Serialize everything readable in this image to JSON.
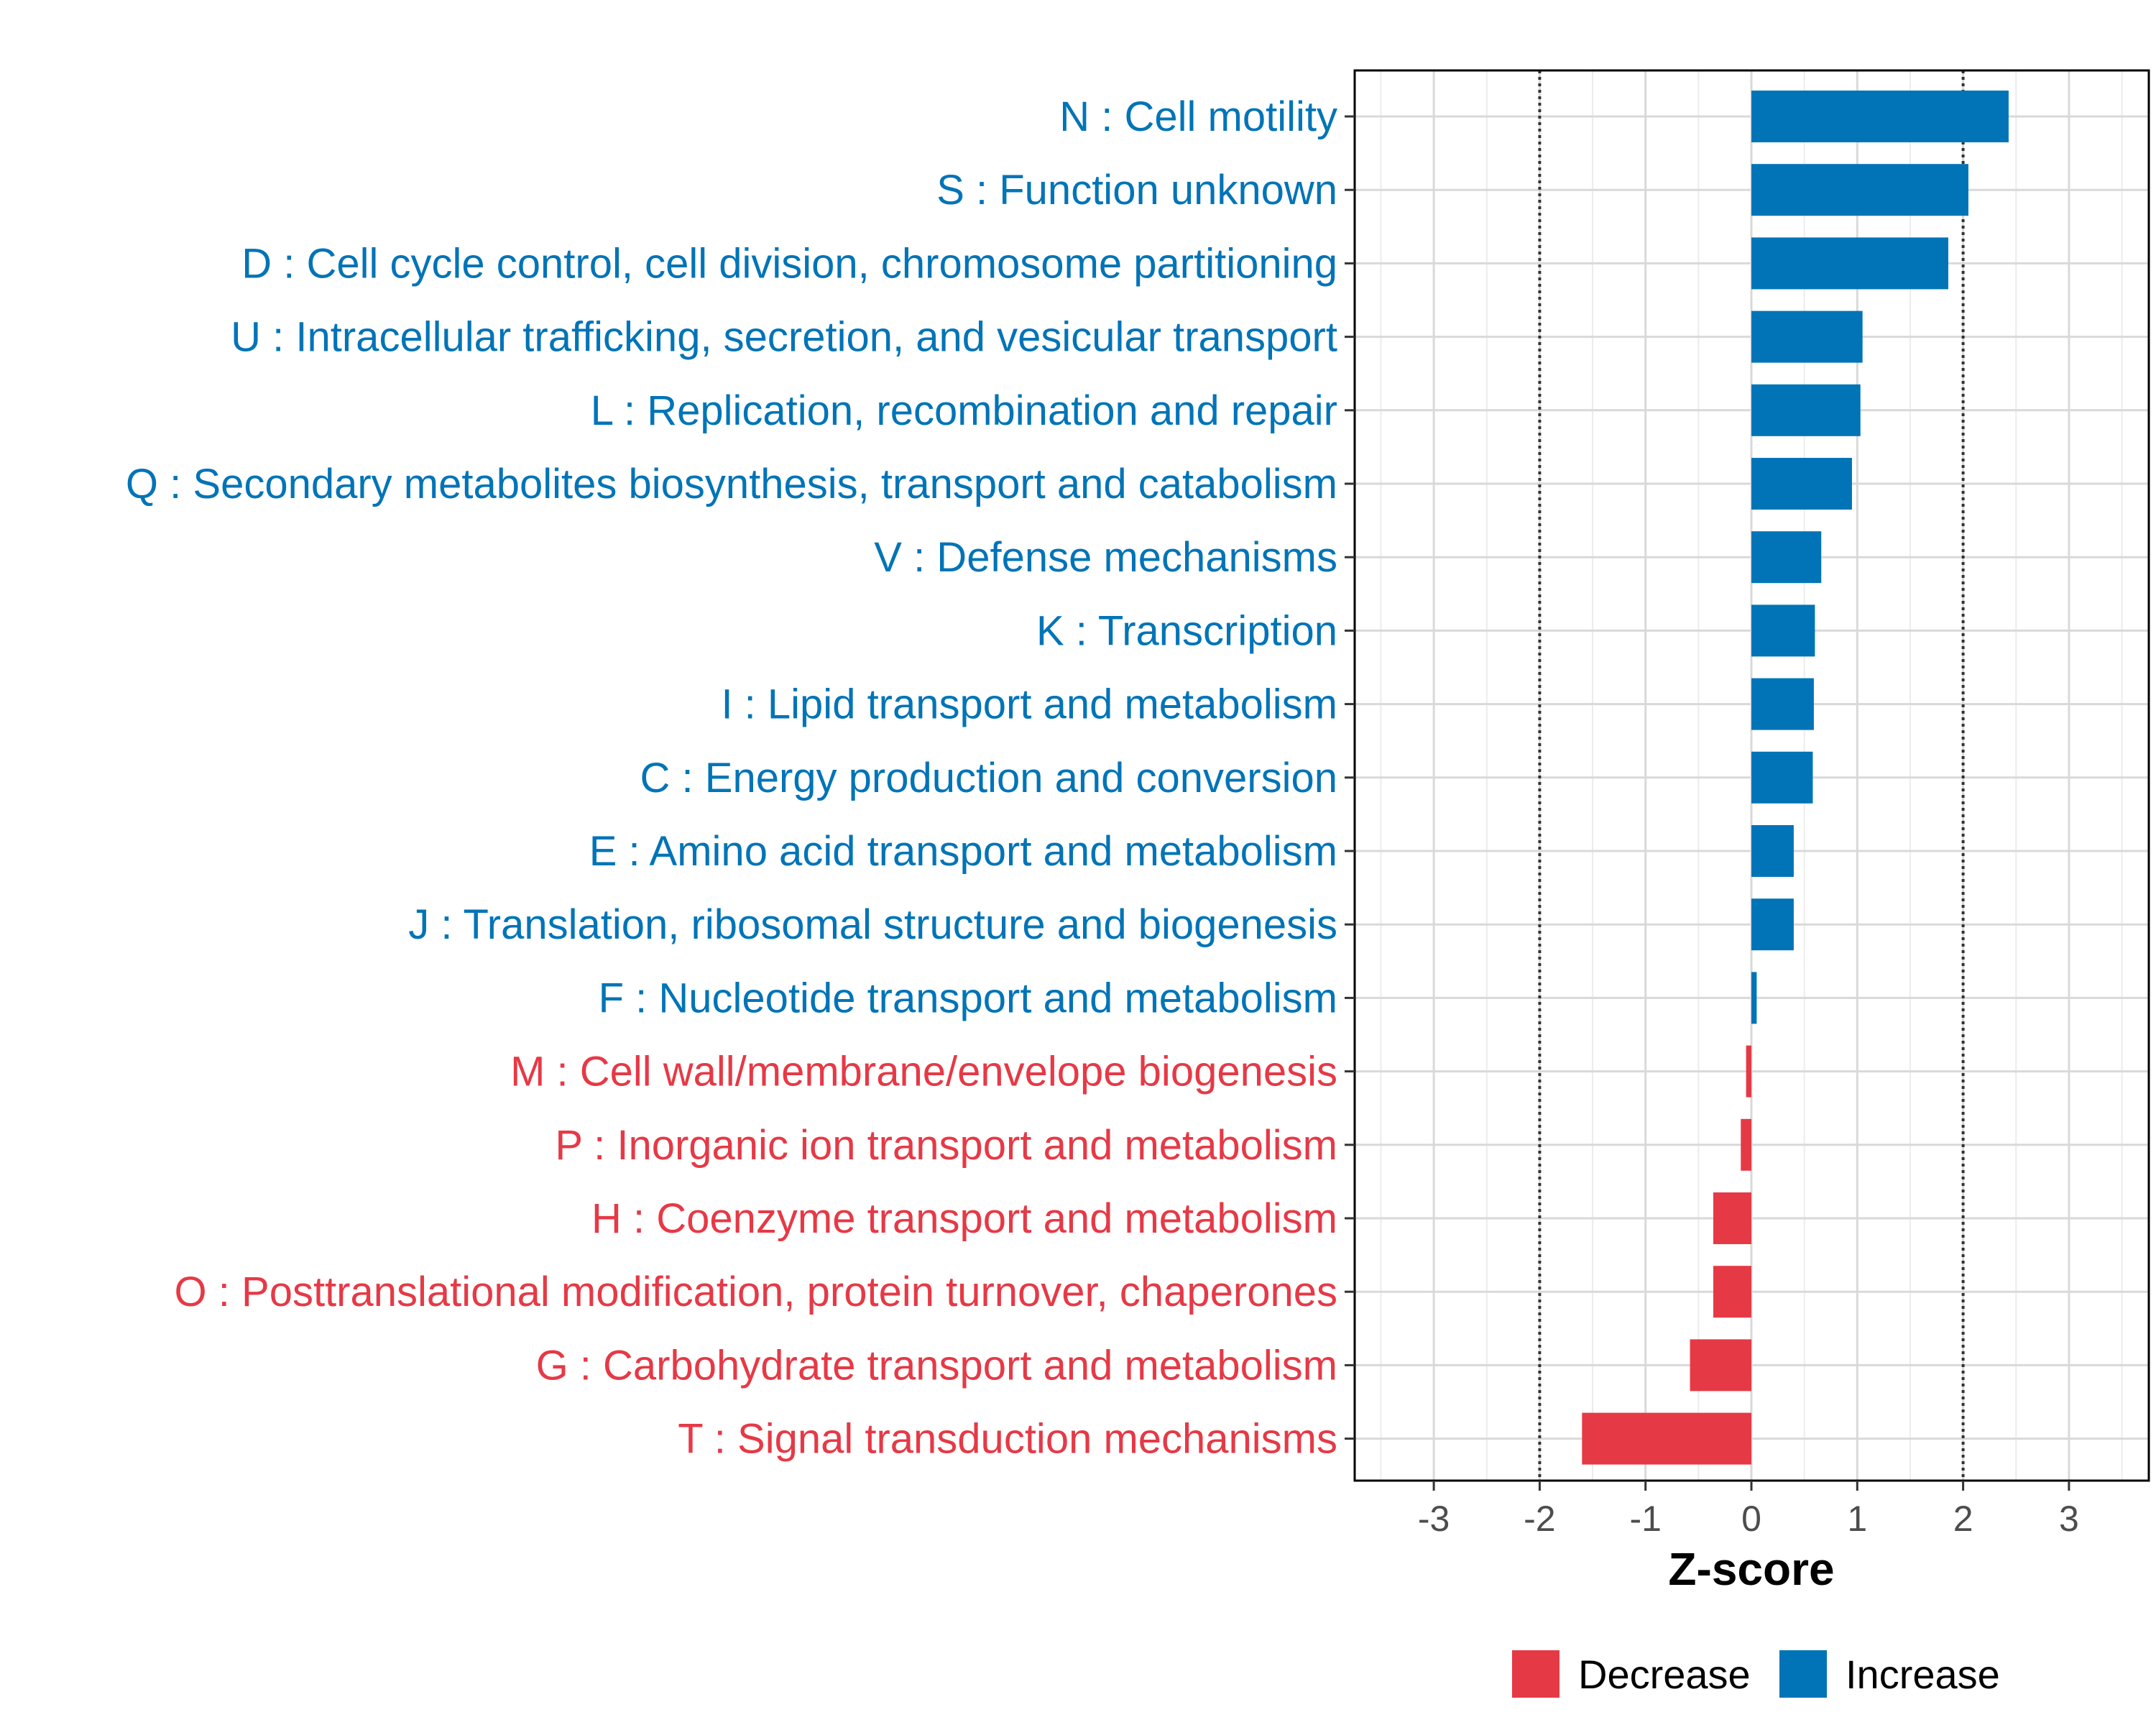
{
  "chart_data": {
    "type": "bar",
    "orientation": "horizontal",
    "xlabel": "Z-score",
    "xlim": [
      -3.75,
      3.75
    ],
    "xticks": [
      -3,
      -2,
      -1,
      0,
      1,
      2,
      3
    ],
    "tick_labels": [
      "-3",
      "-2",
      "-1",
      "0",
      "1",
      "2",
      "3"
    ],
    "reference_lines": [
      -2,
      2
    ],
    "grid": true,
    "colors": {
      "Decrease": "#E63946",
      "Increase": "#0074B7"
    },
    "categories": [
      {
        "label": "N : Cell motility",
        "value": 2.43,
        "direction": "Increase"
      },
      {
        "label": "S : Function unknown",
        "value": 2.05,
        "direction": "Increase"
      },
      {
        "label": "D : Cell cycle control, cell division, chromosome partitioning",
        "value": 1.86,
        "direction": "Increase"
      },
      {
        "label": "U : Intracellular trafficking, secretion, and vesicular transport",
        "value": 1.05,
        "direction": "Increase"
      },
      {
        "label": "L : Replication, recombination and repair",
        "value": 1.03,
        "direction": "Increase"
      },
      {
        "label": "Q : Secondary metabolites biosynthesis, transport and catabolism",
        "value": 0.95,
        "direction": "Increase"
      },
      {
        "label": "V : Defense mechanisms",
        "value": 0.66,
        "direction": "Increase"
      },
      {
        "label": "K : Transcription",
        "value": 0.6,
        "direction": "Increase"
      },
      {
        "label": "I : Lipid transport and metabolism",
        "value": 0.59,
        "direction": "Increase"
      },
      {
        "label": "C : Energy production and conversion",
        "value": 0.58,
        "direction": "Increase"
      },
      {
        "label": "E : Amino acid transport and metabolism",
        "value": 0.4,
        "direction": "Increase"
      },
      {
        "label": "J : Translation, ribosomal structure and biogenesis",
        "value": 0.4,
        "direction": "Increase"
      },
      {
        "label": "F : Nucleotide transport and metabolism",
        "value": 0.05,
        "direction": "Increase"
      },
      {
        "label": "M : Cell wall/membrane/envelope biogenesis",
        "value": -0.05,
        "direction": "Decrease"
      },
      {
        "label": "P : Inorganic ion transport and metabolism",
        "value": -0.1,
        "direction": "Decrease"
      },
      {
        "label": "H : Coenzyme transport and metabolism",
        "value": -0.36,
        "direction": "Decrease"
      },
      {
        "label": "O : Posttranslational modification, protein turnover, chaperones",
        "value": -0.36,
        "direction": "Decrease"
      },
      {
        "label": "G : Carbohydrate transport and metabolism",
        "value": -0.58,
        "direction": "Decrease"
      },
      {
        "label": "T : Signal transduction mechanisms",
        "value": -1.6,
        "direction": "Decrease"
      }
    ],
    "legend": {
      "position": "bottom",
      "items": [
        {
          "name": "Decrease",
          "label": "Decrease"
        },
        {
          "name": "Increase",
          "label": "Increase"
        }
      ]
    }
  }
}
